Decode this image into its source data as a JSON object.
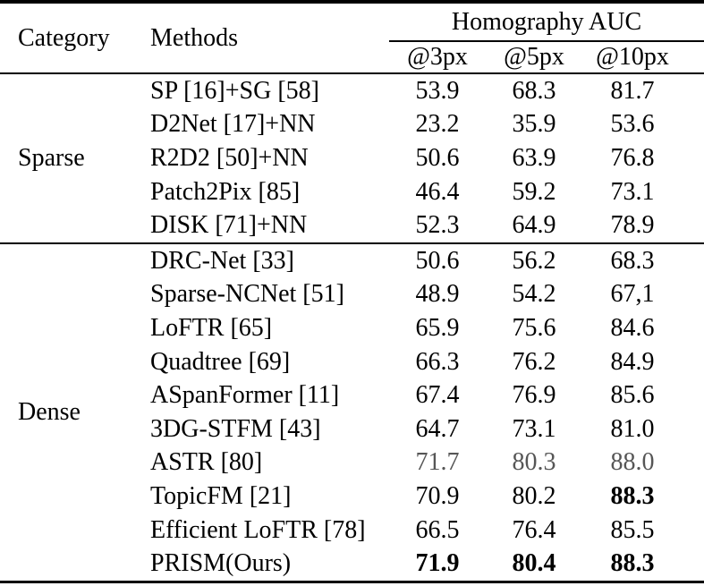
{
  "colors": {
    "text": "#000000",
    "muted_value": "#565656",
    "rule": "#000000",
    "background": "#ffffff"
  },
  "table": {
    "columns": {
      "category": "Category",
      "methods": "Methods",
      "group": "Homography AUC",
      "subcolumns": [
        "@3px",
        "@5px",
        "@10px"
      ]
    },
    "sections": [
      {
        "category": "Sparse",
        "rows": [
          {
            "method": "SP [16]+SG [58]",
            "values": [
              "53.9",
              "68.3",
              "81.7"
            ]
          },
          {
            "method": "D2Net [17]+NN",
            "values": [
              "23.2",
              "35.9",
              "53.6"
            ]
          },
          {
            "method": "R2D2 [50]+NN",
            "values": [
              "50.6",
              "63.9",
              "76.8"
            ]
          },
          {
            "method": "Patch2Pix [85]",
            "values": [
              "46.4",
              "59.2",
              "73.1"
            ]
          },
          {
            "method": "DISK [71]+NN",
            "values": [
              "52.3",
              "64.9",
              "78.9"
            ]
          }
        ]
      },
      {
        "category": "Dense",
        "rows": [
          {
            "method": "DRC-Net [33]",
            "values": [
              "50.6",
              "56.2",
              "68.3"
            ]
          },
          {
            "method": "Sparse-NCNet [51]",
            "values": [
              "48.9",
              "54.2",
              "67,1"
            ]
          },
          {
            "method": "LoFTR [65]",
            "values": [
              "65.9",
              "75.6",
              "84.6"
            ]
          },
          {
            "method": "Quadtree [69]",
            "values": [
              "66.3",
              "76.2",
              "84.9"
            ]
          },
          {
            "method": "ASpanFormer [11]",
            "values": [
              "67.4",
              "76.9",
              "85.6"
            ]
          },
          {
            "method": "3DG-STFM [43]",
            "values": [
              "64.7",
              "73.1",
              "81.0"
            ]
          },
          {
            "method": "ASTR [80]",
            "values": [
              "71.7",
              "80.3",
              "88.0"
            ],
            "muted": true
          },
          {
            "method": "TopicFM [21]",
            "values": [
              "70.9",
              "80.2",
              "88.3"
            ],
            "bold": [
              false,
              false,
              true
            ]
          },
          {
            "method": "Efficient LoFTR [78]",
            "values": [
              "66.5",
              "76.4",
              "85.5"
            ]
          },
          {
            "method": "PRISM(Ours)",
            "values": [
              "71.9",
              "80.4",
              "88.3"
            ],
            "bold": [
              true,
              true,
              true
            ]
          }
        ]
      }
    ]
  }
}
